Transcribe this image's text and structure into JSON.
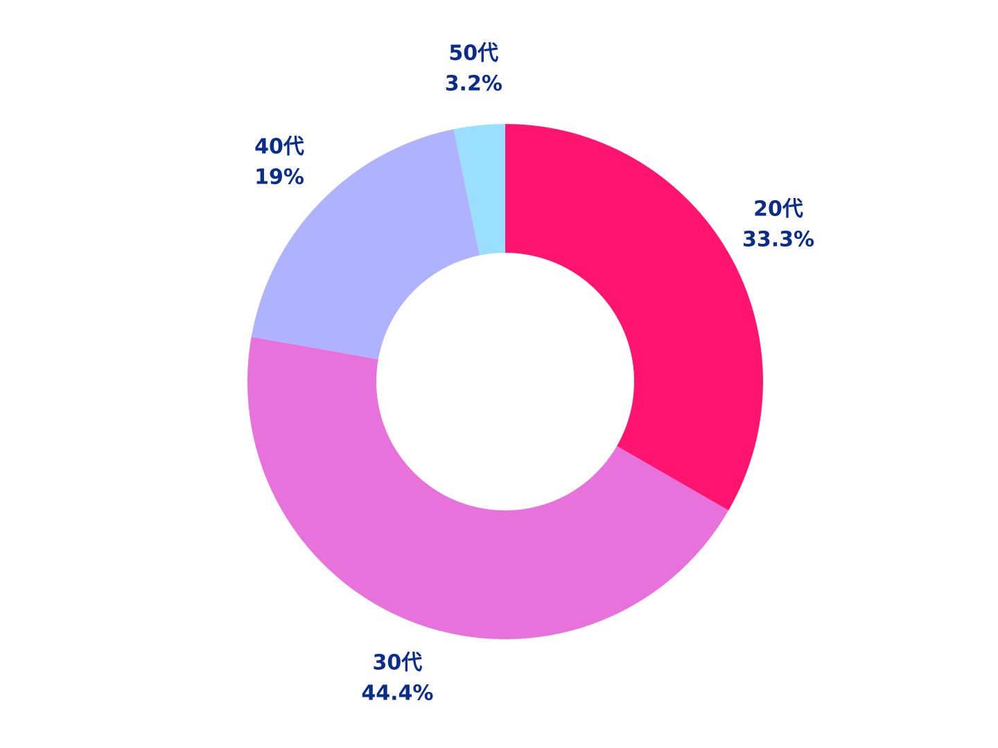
{
  "chart_data": {
    "type": "pie",
    "donut": true,
    "title": "",
    "slices": [
      {
        "category": "20代",
        "value": 33.3,
        "value_label": "33.3%",
        "color": "#FF1470"
      },
      {
        "category": "30代",
        "value": 44.4,
        "value_label": "44.4%",
        "color": "#E872DC"
      },
      {
        "category": "40代",
        "value": 19,
        "value_label": "19%",
        "color": "#AEB2FF"
      },
      {
        "category": "50代",
        "value": 3.2,
        "value_label": "3.2%",
        "color": "#9ADFFF"
      }
    ],
    "label_color": "#0A2C8A",
    "legend": "none"
  }
}
